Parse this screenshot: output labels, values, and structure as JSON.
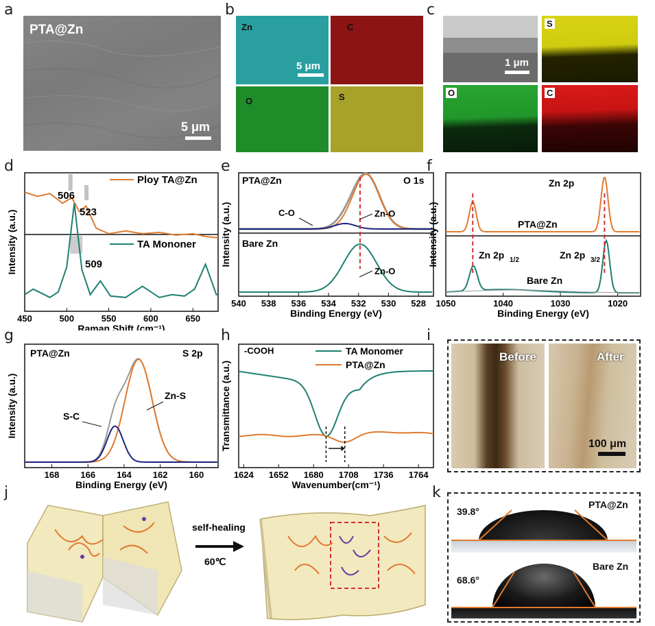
{
  "panel_letters": [
    "a",
    "b",
    "c",
    "d",
    "e",
    "f",
    "g",
    "h",
    "i",
    "j",
    "k"
  ],
  "a": {
    "label": "PTA@Zn",
    "scale": "5 μm"
  },
  "b": {
    "tiles": [
      "Zn",
      "C",
      "O",
      "S"
    ],
    "scale": "5 μm"
  },
  "c": {
    "tiles": [
      "S",
      "O",
      "C"
    ],
    "scale": "1 μm"
  },
  "colors": {
    "orange": "#e07a2e",
    "teal": "#1e7f72",
    "gray": "#9a9a9a",
    "navy": "#1a237e",
    "red": "#d32f2f"
  },
  "chart_data": [
    {
      "panel": "d",
      "type": "line",
      "xlabel": "Raman Shift (cm⁻¹)",
      "ylabel": "Intensity (a.u.)",
      "xlim": [
        450,
        680
      ],
      "xticks": [
        450,
        500,
        550,
        600,
        650
      ],
      "series": [
        {
          "name": "Ploy TA@Zn",
          "x": [
            450,
            465,
            480,
            495,
            506,
            515,
            523,
            535,
            550,
            570,
            590,
            610,
            630,
            650,
            665,
            680
          ],
          "y": [
            0.86,
            0.83,
            0.85,
            0.78,
            0.82,
            0.72,
            0.76,
            0.6,
            0.56,
            0.58,
            0.56,
            0.57,
            0.55,
            0.56,
            0.54,
            0.53
          ]
        },
        {
          "name": "TA Mononer",
          "x": [
            450,
            460,
            470,
            480,
            490,
            500,
            509,
            518,
            528,
            540,
            552,
            570,
            590,
            610,
            625,
            640,
            652,
            665,
            678,
            680
          ],
          "y": [
            0.12,
            0.16,
            0.13,
            0.1,
            0.14,
            0.32,
            0.78,
            0.3,
            0.12,
            0.22,
            0.11,
            0.1,
            0.18,
            0.1,
            0.12,
            0.11,
            0.16,
            0.34,
            0.12,
            0.12
          ]
        }
      ],
      "annotations": [
        "506",
        "523",
        "509"
      ]
    },
    {
      "panel": "e",
      "type": "line",
      "xlabel": "Binding Energy (eV)",
      "ylabel": "Intensity (a.u.)",
      "xlim": [
        540,
        527
      ],
      "xticks": [
        540,
        538,
        536,
        534,
        532,
        530,
        528
      ],
      "labels": {
        "top": "PTA@Zn",
        "element": "O 1s",
        "bottom": "Bare Zn",
        "co": "C-O",
        "zno_top": "Zn-O",
        "zno_bottom": "Zn-O"
      },
      "peaks": {
        "top_zno": 531.5,
        "top_co": 532.9,
        "bottom_zno": 531.9
      }
    },
    {
      "panel": "f",
      "type": "line",
      "xlabel": "Binding Energy (eV)",
      "ylabel": "Intensity (a.u.)",
      "xlim": [
        1050,
        1016
      ],
      "xticks": [
        1050,
        1040,
        1030,
        1020
      ],
      "labels": {
        "top": "PTA@Zn",
        "element": "Zn 2p",
        "bottom": "Bare Zn",
        "p12": "Zn 2p",
        "p12_sub": "1/2",
        "p32": "Zn 2p",
        "p32_sub": "3/2"
      },
      "peaks": {
        "top_p12": 1045.3,
        "top_p32": 1022.3,
        "bottom_p12": 1045.2,
        "bottom_p32": 1022.0
      }
    },
    {
      "panel": "g",
      "type": "line",
      "xlabel": "Binding Energy (eV)",
      "ylabel": "Intensity (a.u.)",
      "xlim": [
        169.5,
        158.8
      ],
      "xticks": [
        168,
        166,
        164,
        162,
        160
      ],
      "labels": {
        "top": "PTA@Zn",
        "element": "S 2p",
        "sc": "S-C",
        "zns": "Zn-S"
      },
      "peaks": {
        "zns": 163.2,
        "sc": 164.5
      }
    },
    {
      "panel": "h",
      "type": "line",
      "xlabel": "Wavenumber(cm⁻¹)",
      "ylabel": "Transmittance (a.u.)",
      "xlim": [
        1620,
        1776
      ],
      "xticks": [
        1624,
        1652,
        1680,
        1708,
        1736,
        1764
      ],
      "labels": {
        "group": "-COOH"
      },
      "series": [
        {
          "name": "TA Monomer"
        },
        {
          "name": "PTA@Zn"
        }
      ],
      "markers": [
        1690,
        1705
      ]
    }
  ],
  "i": {
    "before": "Before",
    "after": "After",
    "scale": "100 μm"
  },
  "j": {
    "arrow_label": "self-healing",
    "temp": "60℃"
  },
  "k": {
    "top_angle": "39.8°",
    "top_label": "PTA@Zn",
    "bottom_angle": "68.6°",
    "bottom_label": "Bare Zn",
    "top_angle_value": 39.8,
    "bottom_angle_value": 68.6
  }
}
